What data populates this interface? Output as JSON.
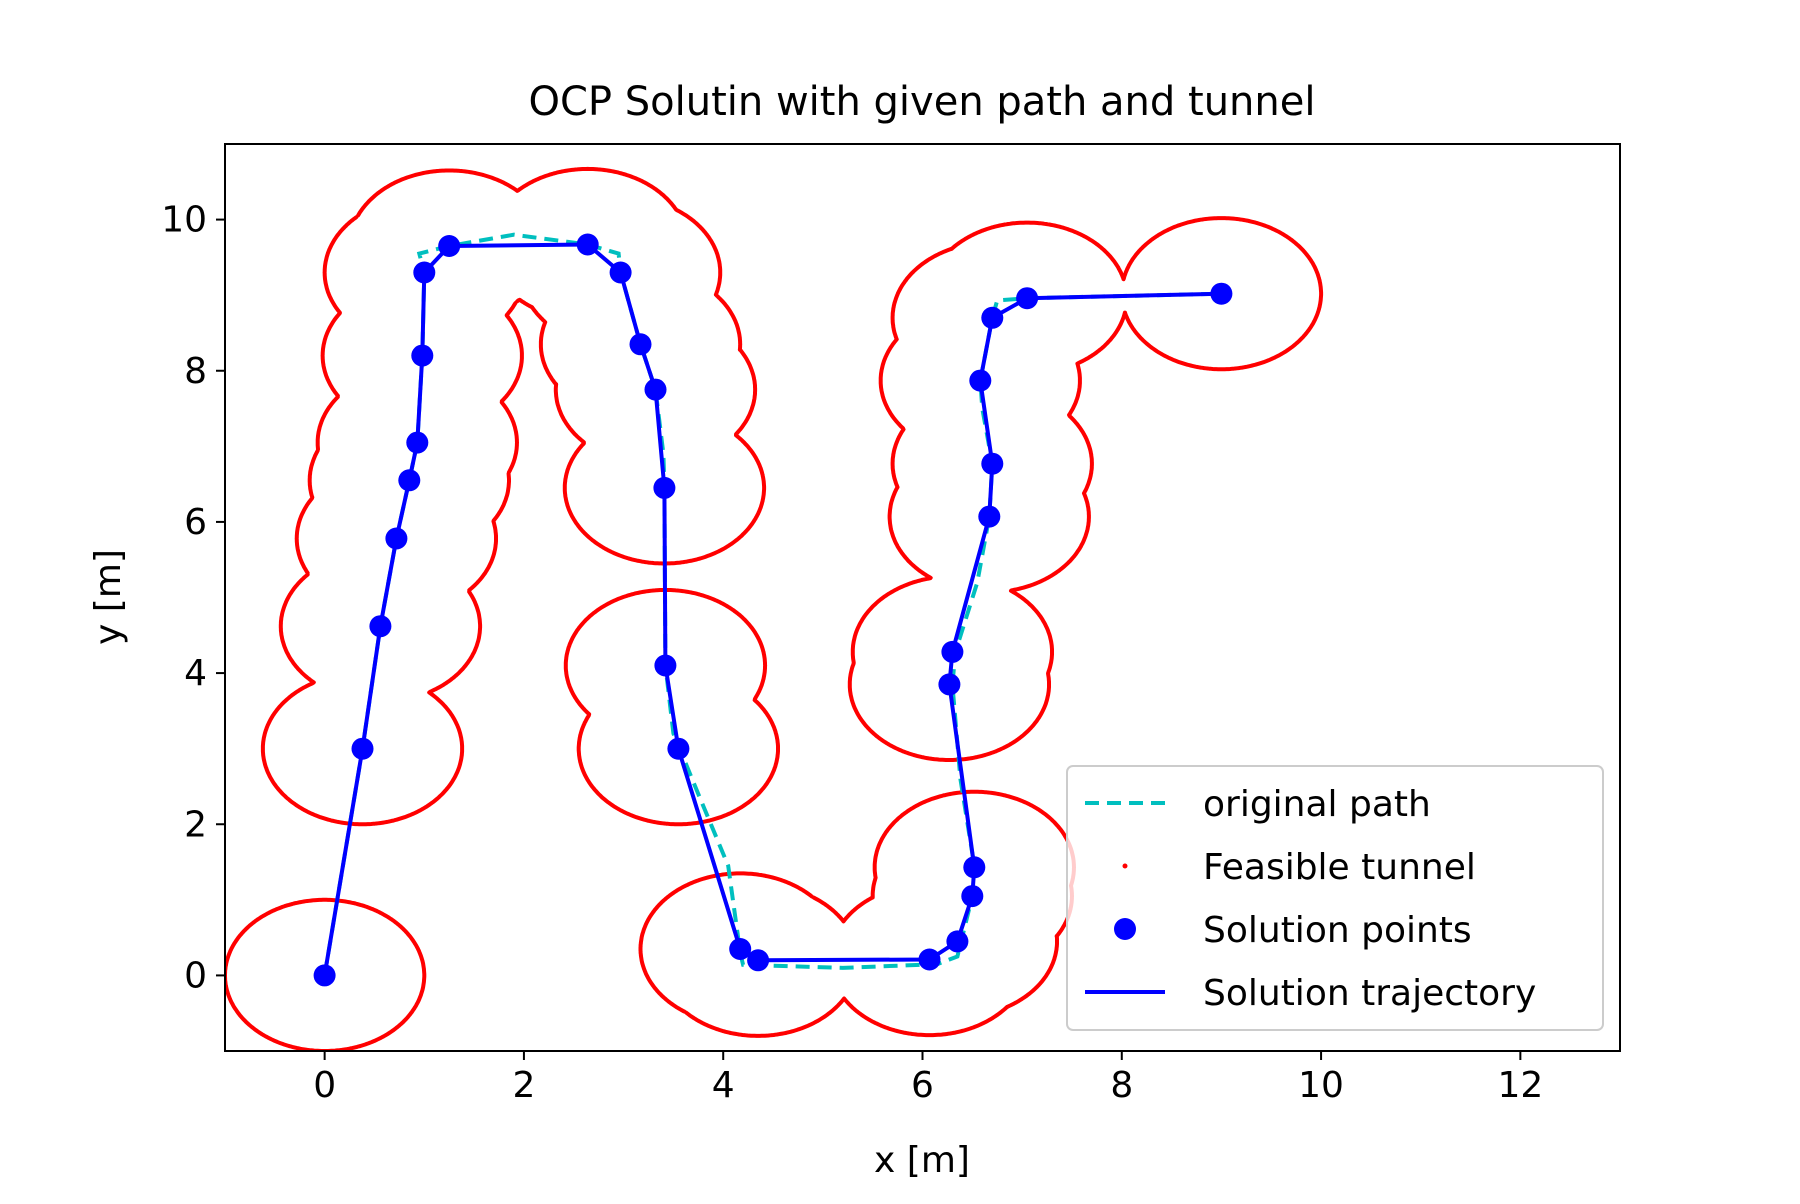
{
  "chart_data": {
    "type": "scatter",
    "title": "OCP Solutin with given path and tunnel",
    "xlabel": "x [m]",
    "ylabel": "y [m]",
    "xlim": [
      -1.0,
      13.0
    ],
    "ylim": [
      -1.0,
      11.0
    ],
    "xticks": [
      0,
      2,
      4,
      6,
      8,
      10,
      12
    ],
    "yticks": [
      0,
      2,
      4,
      6,
      8,
      10
    ],
    "xtick_labels": [
      "0",
      "2",
      "4",
      "6",
      "8",
      "10",
      "12"
    ],
    "ytick_labels": [
      "0",
      "2",
      "4",
      "6",
      "8",
      "10"
    ],
    "grid": false,
    "legend_position": "lower-right",
    "tunnel_radius": 1.0,
    "series": [
      {
        "name": "original path",
        "kind": "line-dashed",
        "color": "#00bfbf",
        "points": [
          [
            0,
            0
          ],
          [
            0.38,
            3.0
          ],
          [
            0.56,
            4.62
          ],
          [
            0.72,
            5.78
          ],
          [
            0.85,
            6.55
          ],
          [
            0.93,
            7.05
          ],
          [
            0.98,
            8.2
          ],
          [
            1.0,
            9.3
          ],
          [
            0.95,
            9.55
          ],
          [
            1.25,
            9.65
          ],
          [
            1.9,
            9.8
          ],
          [
            2.64,
            9.67
          ],
          [
            2.95,
            9.55
          ],
          [
            2.97,
            9.3
          ],
          [
            3.17,
            8.35
          ],
          [
            3.32,
            7.75
          ],
          [
            3.4,
            6.9
          ],
          [
            3.41,
            6.45
          ],
          [
            3.42,
            4.1
          ],
          [
            3.5,
            3.2
          ],
          [
            3.75,
            2.4
          ],
          [
            4.05,
            1.45
          ],
          [
            4.17,
            0.3
          ],
          [
            4.2,
            0.14
          ],
          [
            5.2,
            0.1
          ],
          [
            6.15,
            0.15
          ],
          [
            6.35,
            0.25
          ],
          [
            6.5,
            1.05
          ],
          [
            6.52,
            1.45
          ],
          [
            6.38,
            2.6
          ],
          [
            6.3,
            3.85
          ],
          [
            6.33,
            4.28
          ],
          [
            6.55,
            5.2
          ],
          [
            6.67,
            6.07
          ],
          [
            6.7,
            6.77
          ],
          [
            6.6,
            7.5
          ],
          [
            6.58,
            7.87
          ],
          [
            6.7,
            8.7
          ],
          [
            6.75,
            8.93
          ],
          [
            7.05,
            8.96
          ],
          [
            9.0,
            9.02
          ]
        ]
      },
      {
        "name": "Feasible tunnel",
        "kind": "tunnel",
        "color": "#ff0000"
      },
      {
        "name": "Solution points",
        "kind": "markers",
        "color": "#0000ff",
        "points": [
          [
            0,
            0
          ],
          [
            0.38,
            3.0
          ],
          [
            0.56,
            4.62
          ],
          [
            0.72,
            5.78
          ],
          [
            0.85,
            6.55
          ],
          [
            0.93,
            7.05
          ],
          [
            0.98,
            8.2
          ],
          [
            1.0,
            9.3
          ],
          [
            1.25,
            9.65
          ],
          [
            2.64,
            9.67
          ],
          [
            2.97,
            9.3
          ],
          [
            3.17,
            8.35
          ],
          [
            3.32,
            7.75
          ],
          [
            3.41,
            6.45
          ],
          [
            3.42,
            4.1
          ],
          [
            3.55,
            3.0
          ],
          [
            4.17,
            0.35
          ],
          [
            4.35,
            0.2
          ],
          [
            6.07,
            0.21
          ],
          [
            6.35,
            0.45
          ],
          [
            6.5,
            1.05
          ],
          [
            6.52,
            1.43
          ],
          [
            6.27,
            3.85
          ],
          [
            6.3,
            4.28
          ],
          [
            6.67,
            6.07
          ],
          [
            6.7,
            6.77
          ],
          [
            6.58,
            7.87
          ],
          [
            6.7,
            8.7
          ],
          [
            7.05,
            8.96
          ],
          [
            9.0,
            9.02
          ]
        ]
      },
      {
        "name": "Solution trajectory",
        "kind": "line-solid",
        "color": "#0000ff",
        "points": [
          [
            0,
            0
          ],
          [
            0.38,
            3.0
          ],
          [
            0.56,
            4.62
          ],
          [
            0.72,
            5.78
          ],
          [
            0.85,
            6.55
          ],
          [
            0.93,
            7.05
          ],
          [
            0.98,
            8.2
          ],
          [
            1.0,
            9.3
          ],
          [
            1.25,
            9.65
          ],
          [
            2.64,
            9.67
          ],
          [
            2.97,
            9.3
          ],
          [
            3.17,
            8.35
          ],
          [
            3.32,
            7.75
          ],
          [
            3.41,
            6.45
          ],
          [
            3.42,
            4.1
          ],
          [
            3.55,
            3.0
          ],
          [
            4.17,
            0.35
          ],
          [
            4.35,
            0.2
          ],
          [
            6.07,
            0.21
          ],
          [
            6.35,
            0.45
          ],
          [
            6.5,
            1.05
          ],
          [
            6.52,
            1.43
          ],
          [
            6.27,
            3.85
          ],
          [
            6.3,
            4.28
          ],
          [
            6.67,
            6.07
          ],
          [
            6.7,
            6.77
          ],
          [
            6.58,
            7.87
          ],
          [
            6.7,
            8.7
          ],
          [
            7.05,
            8.96
          ],
          [
            9.0,
            9.02
          ]
        ]
      }
    ]
  }
}
